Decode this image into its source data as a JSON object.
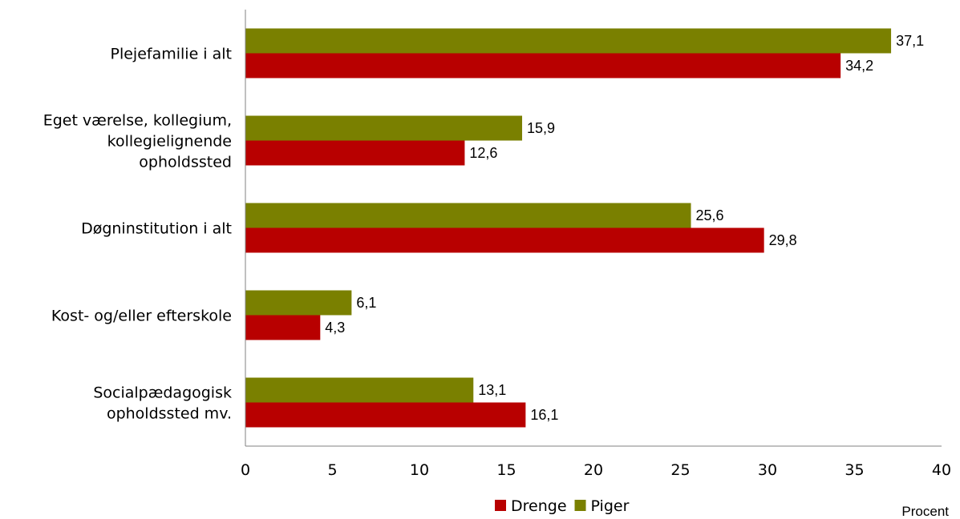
{
  "chart_data": {
    "type": "bar",
    "orientation": "horizontal",
    "categories": [
      [
        "Plejefamilie i alt"
      ],
      [
        "Eget værelse, kollegium,",
        "kollegielignende",
        "opholdssted"
      ],
      [
        "Døgninstitution i alt"
      ],
      [
        "Kost- og/eller efterskole"
      ],
      [
        "Socialpædagogisk",
        "opholdssted mv."
      ]
    ],
    "series": [
      {
        "name": "Piger",
        "color": "#7a8000",
        "values": [
          37.1,
          15.9,
          25.6,
          6.1,
          13.1
        ]
      },
      {
        "name": "Drenge",
        "color": "#b80000",
        "values": [
          34.2,
          12.6,
          29.8,
          4.3,
          16.1
        ]
      }
    ],
    "value_labels": {
      "Piger": [
        "37,1",
        "15,9",
        "25,6",
        "6,1",
        "13,1"
      ],
      "Drenge": [
        "34,2",
        "12,6",
        "29,8",
        "4,3",
        "16,1"
      ]
    },
    "xlim": [
      0,
      40
    ],
    "xticks": [
      0,
      5,
      10,
      15,
      20,
      25,
      30,
      35,
      40
    ],
    "xlabel": "Procent",
    "legend": {
      "placement": "bottom",
      "entries": [
        {
          "name": "Drenge",
          "color": "#b80000"
        },
        {
          "name": "Piger",
          "color": "#7a8000"
        }
      ]
    },
    "grid": false
  }
}
